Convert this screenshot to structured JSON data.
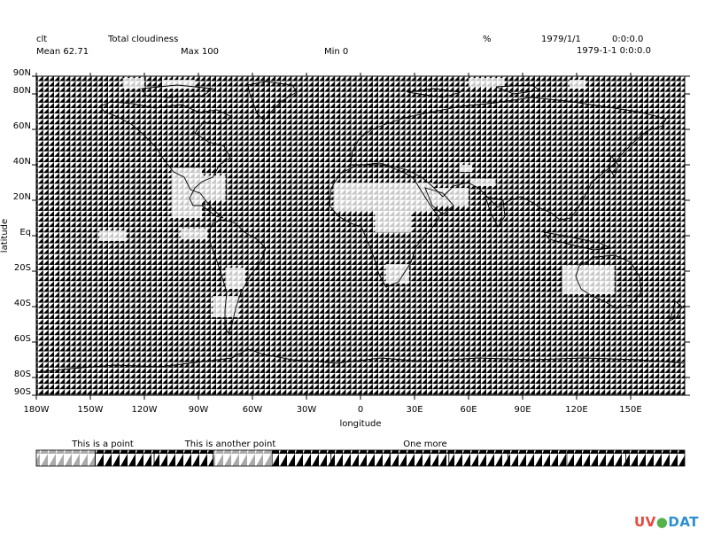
{
  "header": {
    "var_name": "clt",
    "long_name": "Total cloudiness",
    "units": "%",
    "date": "1979/1/1",
    "time": "0:0:0.0",
    "mean": "Mean 62.71",
    "max": "Max 100",
    "min": "Min 0",
    "timestamp": "1979-1-1 0:0:0.0"
  },
  "logo": {
    "part1": "UV",
    "part2": "C",
    "part3": "DAT",
    "circle": "●"
  },
  "colors": {
    "background": "#ffffff",
    "dark": "#000000",
    "light": "#c8c8c8",
    "coast": "#000000"
  },
  "chart_data": {
    "type": "heatmap",
    "title": "Total cloudiness",
    "xlabel": "longitude",
    "ylabel": "latitude",
    "xlim": [
      -180,
      180
    ],
    "ylim": [
      -90,
      90
    ],
    "x_ticks": [
      "180W",
      "150W",
      "120W",
      "90W",
      "60W",
      "30W",
      "0",
      "30E",
      "60E",
      "90E",
      "120E",
      "150E"
    ],
    "x_tick_values": [
      -180,
      -150,
      -120,
      -90,
      -60,
      -30,
      0,
      30,
      60,
      90,
      120,
      150
    ],
    "y_ticks": [
      "90N",
      "80N",
      "60N",
      "40N",
      "20N",
      "Eq",
      "20S",
      "40S",
      "60S",
      "80S",
      "90S"
    ],
    "y_tick_values": [
      90,
      80,
      60,
      40,
      20,
      0,
      -20,
      -40,
      -60,
      -80,
      -90
    ],
    "fill_style": "pattern",
    "legend": {
      "position": "bottom",
      "labels": [
        "This is a point",
        "This is another point",
        "One more"
      ],
      "levels": [
        {
          "pattern": "light"
        },
        {
          "pattern": "dark"
        },
        {
          "pattern": "dark"
        },
        {
          "pattern": "light"
        },
        {
          "pattern": "dark"
        },
        {
          "pattern": "dark"
        },
        {
          "pattern": "dark"
        },
        {
          "pattern": "dark"
        },
        {
          "pattern": "dark"
        },
        {
          "pattern": "dark"
        },
        {
          "pattern": "dark"
        }
      ]
    },
    "light_regions": [
      {
        "lon": [
          -132,
          -120
        ],
        "lat": [
          83,
          89
        ]
      },
      {
        "lon": [
          -110,
          -92
        ],
        "lat": [
          83,
          88
        ]
      },
      {
        "lon": [
          60,
          80
        ],
        "lat": [
          84,
          89
        ]
      },
      {
        "lon": [
          116,
          125
        ],
        "lat": [
          83,
          88
        ]
      },
      {
        "lon": [
          -105,
          -88
        ],
        "lat": [
          10,
          38
        ]
      },
      {
        "lon": [
          -88,
          -75
        ],
        "lat": [
          20,
          34
        ]
      },
      {
        "lon": [
          -145,
          -130
        ],
        "lat": [
          -3,
          3
        ]
      },
      {
        "lon": [
          -100,
          -85
        ],
        "lat": [
          -2,
          4
        ]
      },
      {
        "lon": [
          -75,
          -64
        ],
        "lat": [
          -30,
          -18
        ]
      },
      {
        "lon": [
          -82,
          -68
        ],
        "lat": [
          -46,
          -34
        ]
      },
      {
        "lon": [
          -15,
          40
        ],
        "lat": [
          14,
          30
        ]
      },
      {
        "lon": [
          8,
          28
        ],
        "lat": [
          2,
          14
        ]
      },
      {
        "lon": [
          14,
          27
        ],
        "lat": [
          -27,
          -16
        ]
      },
      {
        "lon": [
          40,
          60
        ],
        "lat": [
          17,
          27
        ]
      },
      {
        "lon": [
          112,
          141
        ],
        "lat": [
          -33,
          -17
        ]
      },
      {
        "lon": [
          61,
          75
        ],
        "lat": [
          28,
          32
        ]
      },
      {
        "lon": [
          55,
          62
        ],
        "lat": [
          36,
          40
        ]
      }
    ]
  }
}
